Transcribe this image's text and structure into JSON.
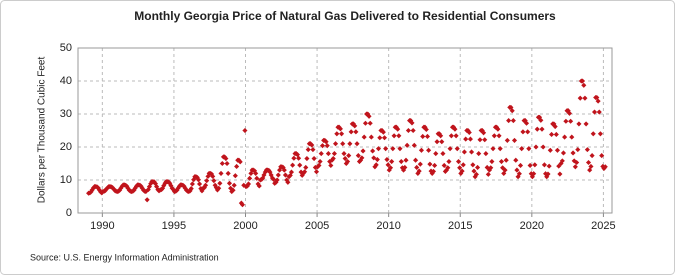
{
  "chart_data": {
    "type": "scatter",
    "title": "Monthly Georgia Price of Natural Gas Delivered to Residential Consumers",
    "y_label": "Dollars per Thousand Cubic Feet",
    "source": "Source: U.S. Energy Information Administration",
    "color": "#c0141c",
    "grid": true,
    "xlim": [
      1988.3,
      2025.6
    ],
    "ylim": [
      0,
      50
    ],
    "xticks": [
      1990,
      1995,
      2000,
      2005,
      2010,
      2015,
      2020,
      2025
    ],
    "yticks": [
      0,
      10,
      20,
      30,
      40,
      50
    ],
    "x": [
      1989.04,
      1989.13,
      1989.21,
      1989.29,
      1989.38,
      1989.46,
      1989.54,
      1989.63,
      1989.71,
      1989.79,
      1989.88,
      1989.96,
      1990.04,
      1990.13,
      1990.21,
      1990.29,
      1990.38,
      1990.46,
      1990.54,
      1990.63,
      1990.71,
      1990.79,
      1990.88,
      1990.96,
      1991.04,
      1991.13,
      1991.21,
      1991.29,
      1991.38,
      1991.46,
      1991.54,
      1991.63,
      1991.71,
      1991.79,
      1991.88,
      1991.96,
      1992.04,
      1992.13,
      1992.21,
      1992.29,
      1992.38,
      1992.46,
      1992.54,
      1992.63,
      1992.71,
      1992.79,
      1992.88,
      1992.96,
      1993.04,
      1993.13,
      1993.21,
      1993.29,
      1993.38,
      1993.46,
      1993.54,
      1993.63,
      1993.71,
      1993.79,
      1993.88,
      1993.96,
      1994.04,
      1994.13,
      1994.21,
      1994.29,
      1994.38,
      1994.46,
      1994.54,
      1994.63,
      1994.71,
      1994.79,
      1994.88,
      1994.96,
      1995.04,
      1995.13,
      1995.21,
      1995.29,
      1995.38,
      1995.46,
      1995.54,
      1995.63,
      1995.71,
      1995.79,
      1995.88,
      1995.96,
      1996.04,
      1996.13,
      1996.21,
      1996.29,
      1996.38,
      1996.46,
      1996.54,
      1996.63,
      1996.71,
      1996.79,
      1996.88,
      1996.96,
      1997.04,
      1997.13,
      1997.21,
      1997.29,
      1997.38,
      1997.46,
      1997.54,
      1997.63,
      1997.71,
      1997.79,
      1997.88,
      1997.96,
      1998.04,
      1998.13,
      1998.21,
      1998.29,
      1998.38,
      1998.46,
      1998.54,
      1998.63,
      1998.71,
      1998.79,
      1998.88,
      1998.96,
      1999.04,
      1999.13,
      1999.21,
      1999.29,
      1999.38,
      1999.46,
      1999.54,
      1999.63,
      1999.71,
      1999.79,
      1999.88,
      1999.96,
      2000.04,
      2000.13,
      2000.21,
      2000.29,
      2000.38,
      2000.46,
      2000.54,
      2000.63,
      2000.71,
      2000.79,
      2000.88,
      2000.96,
      2001.04,
      2001.13,
      2001.21,
      2001.29,
      2001.38,
      2001.46,
      2001.54,
      2001.63,
      2001.71,
      2001.79,
      2001.88,
      2001.96,
      2002.04,
      2002.13,
      2002.21,
      2002.29,
      2002.38,
      2002.46,
      2002.54,
      2002.63,
      2002.71,
      2002.79,
      2002.88,
      2002.96,
      2003.04,
      2003.13,
      2003.21,
      2003.29,
      2003.38,
      2003.46,
      2003.54,
      2003.63,
      2003.71,
      2003.79,
      2003.88,
      2003.96,
      2004.04,
      2004.13,
      2004.21,
      2004.29,
      2004.38,
      2004.46,
      2004.54,
      2004.63,
      2004.71,
      2004.79,
      2004.88,
      2004.96,
      2005.04,
      2005.13,
      2005.21,
      2005.29,
      2005.38,
      2005.46,
      2005.54,
      2005.63,
      2005.71,
      2005.79,
      2005.88,
      2005.96,
      2006.04,
      2006.13,
      2006.21,
      2006.29,
      2006.38,
      2006.46,
      2006.54,
      2006.63,
      2006.71,
      2006.79,
      2006.88,
      2006.96,
      2007.04,
      2007.13,
      2007.21,
      2007.29,
      2007.38,
      2007.46,
      2007.54,
      2007.63,
      2007.71,
      2007.79,
      2007.88,
      2007.96,
      2008.04,
      2008.13,
      2008.21,
      2008.29,
      2008.38,
      2008.46,
      2008.54,
      2008.63,
      2008.71,
      2008.79,
      2008.88,
      2008.96,
      2009.04,
      2009.13,
      2009.21,
      2009.29,
      2009.38,
      2009.46,
      2009.54,
      2009.63,
      2009.71,
      2009.79,
      2009.88,
      2009.96,
      2010.04,
      2010.13,
      2010.21,
      2010.29,
      2010.38,
      2010.46,
      2010.54,
      2010.63,
      2010.71,
      2010.79,
      2010.88,
      2010.96,
      2011.04,
      2011.13,
      2011.21,
      2011.29,
      2011.38,
      2011.46,
      2011.54,
      2011.63,
      2011.71,
      2011.79,
      2011.88,
      2011.96,
      2012.04,
      2012.13,
      2012.21,
      2012.29,
      2012.38,
      2012.46,
      2012.54,
      2012.63,
      2012.71,
      2012.79,
      2012.88,
      2012.96,
      2013.04,
      2013.13,
      2013.21,
      2013.29,
      2013.38,
      2013.46,
      2013.54,
      2013.63,
      2013.71,
      2013.79,
      2013.88,
      2013.96,
      2014.04,
      2014.13,
      2014.21,
      2014.29,
      2014.38,
      2014.46,
      2014.54,
      2014.63,
      2014.71,
      2014.79,
      2014.88,
      2014.96,
      2015.04,
      2015.13,
      2015.21,
      2015.29,
      2015.38,
      2015.46,
      2015.54,
      2015.63,
      2015.71,
      2015.79,
      2015.88,
      2015.96,
      2016.04,
      2016.13,
      2016.21,
      2016.29,
      2016.38,
      2016.46,
      2016.54,
      2016.63,
      2016.71,
      2016.79,
      2016.88,
      2016.96,
      2017.04,
      2017.13,
      2017.21,
      2017.29,
      2017.38,
      2017.46,
      2017.54,
      2017.63,
      2017.71,
      2017.79,
      2017.88,
      2017.96,
      2018.04,
      2018.13,
      2018.21,
      2018.29,
      2018.38,
      2018.46,
      2018.54,
      2018.63,
      2018.71,
      2018.79,
      2018.88,
      2018.96,
      2019.04,
      2019.13,
      2019.21,
      2019.29,
      2019.38,
      2019.46,
      2019.54,
      2019.63,
      2019.71,
      2019.79,
      2019.88,
      2019.96,
      2020.04,
      2020.13,
      2020.21,
      2020.29,
      2020.38,
      2020.46,
      2020.54,
      2020.63,
      2020.71,
      2020.79,
      2020.88,
      2020.96,
      2021.04,
      2021.13,
      2021.21,
      2021.29,
      2021.38,
      2021.46,
      2021.54,
      2021.63,
      2021.71,
      2021.79,
      2021.88,
      2021.96,
      2022.04,
      2022.13,
      2022.21,
      2022.29,
      2022.38,
      2022.46,
      2022.54,
      2022.63,
      2022.71,
      2022.79,
      2022.88,
      2022.96,
      2023.04,
      2023.13,
      2023.21,
      2023.29,
      2023.38,
      2023.46,
      2023.54,
      2023.63,
      2023.71,
      2023.79,
      2023.88,
      2023.96,
      2024.04,
      2024.13,
      2024.21,
      2024.29,
      2024.38,
      2024.46,
      2024.54,
      2024.63,
      2024.71,
      2024.79,
      2024.88,
      2024.96,
      2025.04,
      2025.13
    ],
    "values": [
      6,
      6.1,
      6.4,
      7,
      7.6,
      8,
      8,
      7.9,
      7.6,
      7,
      6.4,
      6.1,
      6.5,
      6.6,
      6.8,
      7.3,
      7.7,
      8,
      8,
      7.9,
      7.7,
      7.3,
      6.8,
      6.6,
      6.5,
      6.6,
      6.9,
      7.5,
      8.1,
      8.5,
      8.5,
      8.4,
      8.1,
      7.5,
      6.9,
      6.6,
      6.5,
      6.6,
      6.9,
      7.5,
      8.1,
      8.5,
      8.5,
      8.4,
      8.1,
      7.5,
      6.9,
      6.6,
      6.5,
      4,
      7.1,
      8,
      8.9,
      9.5,
      9.5,
      9.4,
      8.9,
      8,
      7.1,
      6.7,
      7,
      7.1,
      7.5,
      8.3,
      9,
      9.5,
      9.5,
      9.4,
      9,
      8.3,
      7.5,
      7.1,
      6.5,
      6.6,
      6.9,
      7.5,
      8.1,
      8.5,
      8.5,
      8.4,
      8.1,
      7.5,
      6.9,
      6.6,
      6.5,
      6.7,
      7.4,
      8.8,
      10.1,
      11,
      11,
      10.8,
      10.1,
      8.8,
      7.4,
      6.7,
      7.5,
      7.7,
      8.4,
      9.8,
      11.1,
      12,
      12,
      11.8,
      11.1,
      9.8,
      8.4,
      7.7,
      7,
      7.5,
      9,
      12,
      15,
      17,
      17,
      16.5,
      15,
      12,
      9,
      7.5,
      6.5,
      6.9,
      8.4,
      11.3,
      14.1,
      16,
      16,
      15.5,
      3,
      2.5,
      8.4,
      25,
      8,
      8.2,
      8.8,
      10.5,
      12,
      13,
      13,
      12.8,
      12,
      10.5,
      8.8,
      8.2,
      10,
      10.2,
      10.6,
      11.5,
      12.4,
      13,
      13,
      12.9,
      12.4,
      11.5,
      10.6,
      10.2,
      9,
      9.3,
      10,
      11.5,
      13,
      14,
      14,
      13.8,
      13,
      11.5,
      10,
      9.3,
      11,
      11.4,
      12.4,
      14.5,
      16.6,
      18,
      18,
      17.7,
      16.6,
      14.5,
      12.4,
      11.4,
      12,
      12.5,
      13.8,
      16.5,
      19.2,
      21,
      21,
      20.6,
      19.2,
      16.5,
      13.8,
      12.5,
      14,
      14.4,
      15.6,
      18,
      20.4,
      22,
      22,
      21.6,
      20.4,
      18,
      15.6,
      14.4,
      16,
      16.5,
      18,
      21,
      24,
      26,
      26,
      25.5,
      24,
      21,
      18,
      16.5,
      15,
      15.6,
      17.4,
      21,
      24.6,
      27,
      27,
      26.4,
      24.6,
      21,
      17.4,
      15.6,
      16,
      16.7,
      18.8,
      23,
      27.2,
      30,
      30,
      29.3,
      27.2,
      23,
      18.8,
      16.7,
      14,
      14.6,
      16.2,
      19.5,
      22.8,
      25,
      25,
      24.5,
      22.8,
      19.5,
      16.2,
      14.6,
      13,
      13.7,
      15.6,
      19.5,
      23.4,
      26,
      26,
      25.4,
      23.4,
      19.5,
      15.6,
      13.7,
      13,
      13.8,
      16,
      20.5,
      25,
      28,
      28,
      27.3,
      25,
      20.5,
      16,
      13.8,
      12,
      12.7,
      14.8,
      19,
      23.2,
      26,
      26,
      25.3,
      23.2,
      19,
      14.8,
      12.7,
      12,
      12.6,
      14.4,
      18,
      21.6,
      24,
      24,
      23.4,
      21.6,
      18,
      14.4,
      12.6,
      13,
      13.7,
      15.6,
      19.5,
      23.4,
      26,
      26,
      25.4,
      23.4,
      19.5,
      15.6,
      13.7,
      12,
      12.7,
      14.6,
      18.5,
      22.4,
      25,
      25,
      24.4,
      22.4,
      18.5,
      14.6,
      12.7,
      11,
      11.7,
      13.8,
      18,
      22.2,
      25,
      25,
      24.3,
      22.2,
      18,
      13.8,
      11.7,
      13,
      13.7,
      15.6,
      19.5,
      23.4,
      26,
      26,
      25.4,
      23.4,
      19.5,
      15.6,
      13.7,
      12,
      13,
      16,
      22,
      28,
      32,
      32,
      31,
      28,
      22,
      16,
      13,
      11,
      11.9,
      14.4,
      19.5,
      24.6,
      28,
      28,
      27.2,
      24.6,
      19.5,
      14.4,
      11.9,
      11,
      11.9,
      14.6,
      20,
      25.4,
      29,
      29,
      28.1,
      25.4,
      20,
      14.6,
      11.9,
      11,
      11.8,
      14.2,
      19,
      23.8,
      27,
      27,
      26.2,
      23.8,
      19,
      14.2,
      11.8,
      15,
      15.8,
      18.2,
      23,
      27.8,
      31,
      31,
      30.2,
      27.8,
      23,
      18.2,
      15.8,
      14,
      15.3,
      19.2,
      27,
      34.8,
      40,
      40,
      38.7,
      34.8,
      27,
      19.2,
      15.3,
      13,
      14.1,
      17.4,
      24,
      30.6,
      35,
      35,
      33.9,
      30.6,
      24,
      17.4,
      14.1,
      13.5,
      14
    ]
  }
}
